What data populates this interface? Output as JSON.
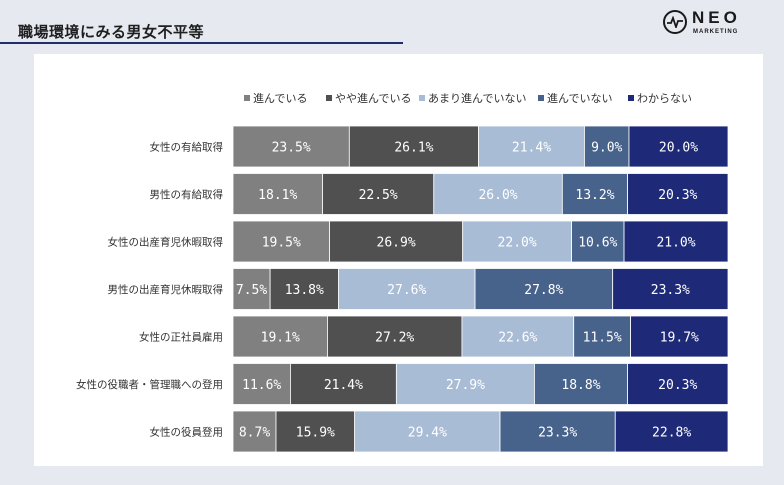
{
  "header": {
    "title": "職場環境にみる男女不平等",
    "logo_text": "NEO",
    "logo_sub": "MARKETING"
  },
  "chart_data": {
    "type": "bar",
    "orientation": "horizontal",
    "stacked": true,
    "normalized": true,
    "legend_position": "top",
    "grid": false,
    "categories": [
      "女性の有給取得",
      "男性の有給取得",
      "女性の出産育児休暇取得",
      "男性の出産育児休暇取得",
      "女性の正社員雇用",
      "女性の役職者・管理職への登用",
      "女性の役員登用"
    ],
    "series": [
      {
        "name": "進んでいる",
        "color": "#808080",
        "values": [
          23.5,
          18.1,
          19.5,
          7.5,
          19.1,
          11.6,
          8.7
        ]
      },
      {
        "name": "やや進んでいる",
        "color": "#505050",
        "values": [
          26.1,
          22.5,
          26.9,
          13.8,
          27.2,
          21.4,
          15.9
        ]
      },
      {
        "name": "あまり進んでいない",
        "color": "#a9bcd6",
        "values": [
          21.4,
          26.0,
          22.0,
          27.6,
          22.6,
          27.9,
          29.4
        ]
      },
      {
        "name": "進んでいない",
        "color": "#47628b",
        "values": [
          9.0,
          13.2,
          10.6,
          27.8,
          11.5,
          18.8,
          23.3
        ]
      },
      {
        "name": "わからない",
        "color": "#1e2a78",
        "values": [
          20.0,
          20.3,
          21.0,
          23.3,
          19.7,
          20.3,
          22.8
        ]
      }
    ],
    "value_format": "%"
  }
}
